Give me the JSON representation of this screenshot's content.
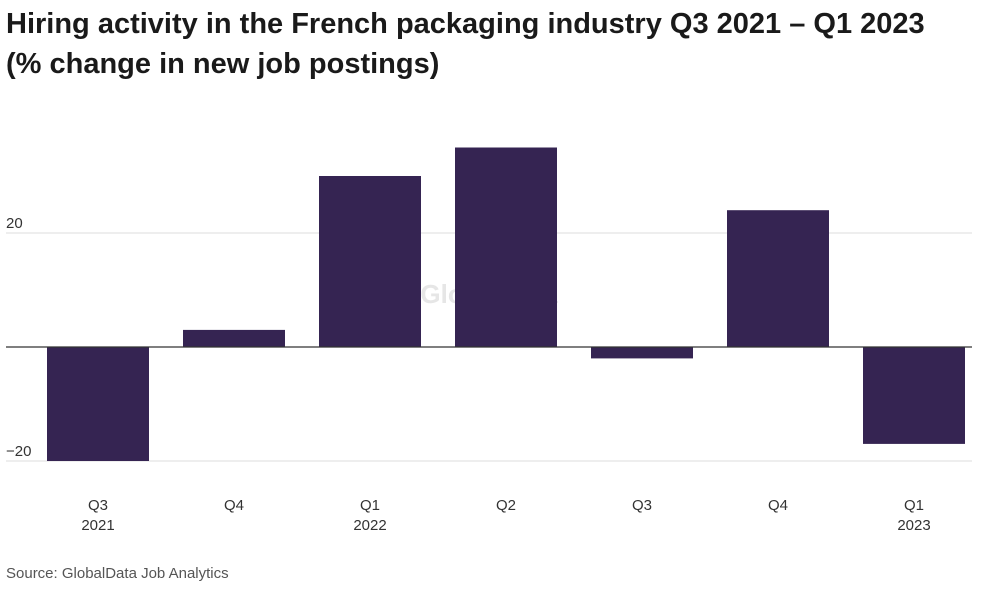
{
  "title_line1": "Hiring activity in the French packaging industry Q3 2021 – Q1 2023",
  "title_line2": "(% change in new job postings)",
  "source": "Source: GlobalData Job Analytics",
  "watermark": "GlobalData",
  "colors": {
    "bar": "#352452",
    "grid": "#dddddd",
    "zero_line": "#333333",
    "tick_text": "#333333",
    "watermark": "#e6e6e6"
  },
  "chart_data": {
    "type": "bar",
    "title": "Hiring activity in the French packaging industry Q3 2021 – Q1 2023 (% change in new job postings)",
    "categories": [
      [
        "Q3",
        "2021"
      ],
      [
        "Q4",
        ""
      ],
      [
        "Q1",
        "2022"
      ],
      [
        "Q2",
        ""
      ],
      [
        "Q3",
        ""
      ],
      [
        "Q4",
        ""
      ],
      [
        "Q1",
        "2023"
      ]
    ],
    "values": [
      -20,
      3,
      30,
      35,
      -2,
      24,
      -17
    ],
    "ylim": [
      -20,
      35
    ],
    "y_ticks": [
      {
        "value": 20,
        "label": "20"
      },
      {
        "value": 0,
        "label": ""
      },
      {
        "value": -20,
        "label": "−20"
      }
    ],
    "grid": true,
    "legend": "none"
  }
}
